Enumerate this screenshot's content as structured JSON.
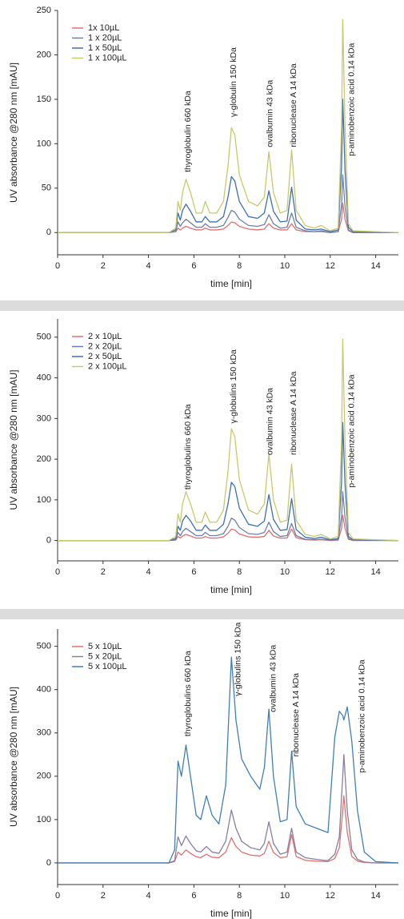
{
  "chart_data": [
    {
      "type": "line",
      "x_label": "time [min]",
      "y_label": "UV absorbance @280 nm [mAU]",
      "legend": "upper left",
      "xlim": [
        0,
        15
      ],
      "ylim": [
        -25,
        250
      ],
      "xticks": [
        0,
        2,
        4,
        6,
        8,
        10,
        12,
        14
      ],
      "yticks": [
        0,
        50,
        100,
        150,
        200,
        250
      ],
      "x": [
        0,
        4.9,
        5.2,
        5.3,
        5.4,
        5.5,
        5.65,
        5.85,
        6.1,
        6.35,
        6.5,
        6.7,
        7.0,
        7.3,
        7.5,
        7.65,
        7.8,
        8.0,
        8.4,
        8.8,
        9.1,
        9.3,
        9.5,
        9.8,
        10.1,
        10.3,
        10.5,
        10.9,
        11.3,
        11.6,
        12.0,
        12.35,
        12.5,
        12.55,
        12.65,
        12.8,
        13.0,
        15
      ],
      "series": [
        {
          "name": "1x 10µL",
          "color": "#e07070",
          "values": [
            0,
            0,
            1,
            5,
            3,
            5,
            7,
            5,
            3,
            3,
            5,
            3,
            3,
            4,
            8,
            12,
            11,
            7,
            4,
            3,
            4,
            10,
            5,
            3,
            3,
            10,
            3,
            1,
            1,
            1,
            0,
            1,
            15,
            33,
            15,
            2,
            0,
            0
          ]
        },
        {
          "name": "1 x 20µL",
          "color": "#6f7fa6",
          "values": [
            0,
            0,
            1,
            12,
            7,
            11,
            15,
            11,
            6,
            6,
            10,
            6,
            6,
            8,
            17,
            25,
            23,
            15,
            8,
            7,
            9,
            20,
            10,
            5,
            6,
            22,
            6,
            2,
            1,
            2,
            0,
            1,
            32,
            65,
            30,
            3,
            0,
            0
          ]
        },
        {
          "name": "1 x 50µL",
          "color": "#3d6fb3",
          "values": [
            0,
            0,
            3,
            22,
            14,
            25,
            32,
            24,
            12,
            12,
            18,
            12,
            12,
            18,
            40,
            63,
            58,
            35,
            18,
            16,
            22,
            47,
            24,
            12,
            13,
            51,
            14,
            4,
            3,
            4,
            1,
            3,
            75,
            150,
            70,
            6,
            1,
            0
          ]
        },
        {
          "name": "1 x 100µL",
          "color": "#c6ca6a",
          "values": [
            0,
            0,
            5,
            35,
            25,
            45,
            60,
            45,
            22,
            22,
            35,
            22,
            22,
            35,
            75,
            118,
            110,
            65,
            35,
            30,
            40,
            91,
            45,
            22,
            25,
            93,
            25,
            8,
            5,
            8,
            2,
            5,
            120,
            240,
            120,
            10,
            2,
            0
          ]
        }
      ],
      "annotations": [
        {
          "text": "thyroglobulin 660 kDa",
          "x": 5.75,
          "y": 68
        },
        {
          "text": "γ-globulin 150 kDa",
          "x": 7.75,
          "y": 130
        },
        {
          "text": "ovalbumin 43 kDa",
          "x": 9.35,
          "y": 96
        },
        {
          "text": "ribonuclease A 14 kDa",
          "x": 10.4,
          "y": 96
        },
        {
          "text": "p-aminobenzoic acid 0.14 kDa",
          "x": 12.95,
          "y": 86
        }
      ]
    },
    {
      "type": "line",
      "x_label": "time [min]",
      "y_label": "UV absorbance @280 nm [mAU]",
      "legend": "upper left",
      "xlim": [
        0,
        15
      ],
      "ylim": [
        -50,
        545
      ],
      "xticks": [
        0,
        2,
        4,
        6,
        8,
        10,
        12,
        14
      ],
      "yticks": [
        0,
        100,
        200,
        300,
        400,
        500
      ],
      "x": [
        0,
        4.9,
        5.2,
        5.3,
        5.4,
        5.5,
        5.65,
        5.85,
        6.1,
        6.35,
        6.5,
        6.7,
        7.0,
        7.3,
        7.5,
        7.65,
        7.8,
        8.0,
        8.4,
        8.8,
        9.1,
        9.3,
        9.5,
        9.8,
        10.1,
        10.3,
        10.5,
        10.9,
        11.3,
        11.6,
        12.0,
        12.35,
        12.5,
        12.55,
        12.65,
        12.8,
        13.0,
        15
      ],
      "series": [
        {
          "name": "2 x 10µL",
          "color": "#e07070",
          "values": [
            0,
            0,
            1,
            10,
            6,
            11,
            15,
            11,
            6,
            6,
            10,
            6,
            6,
            9,
            18,
            28,
            26,
            16,
            9,
            8,
            10,
            25,
            11,
            6,
            6,
            28,
            7,
            2,
            1,
            2,
            0,
            1,
            30,
            62,
            30,
            3,
            0,
            0
          ]
        },
        {
          "name": "2 x 20µL",
          "color": "#6f7fa6",
          "values": [
            0,
            0,
            2,
            20,
            12,
            22,
            30,
            22,
            12,
            12,
            20,
            12,
            12,
            17,
            35,
            55,
            50,
            32,
            17,
            15,
            20,
            45,
            22,
            10,
            12,
            42,
            12,
            3,
            2,
            3,
            1,
            2,
            60,
            120,
            58,
            5,
            1,
            0
          ]
        },
        {
          "name": "2 x 50µL",
          "color": "#3d6fb3",
          "values": [
            0,
            0,
            5,
            35,
            25,
            48,
            62,
            48,
            25,
            25,
            38,
            25,
            25,
            40,
            90,
            143,
            133,
            80,
            40,
            35,
            48,
            113,
            52,
            25,
            27,
            103,
            27,
            8,
            5,
            8,
            2,
            5,
            145,
            290,
            140,
            10,
            2,
            0
          ]
        },
        {
          "name": "2 x 100µL",
          "color": "#c6ca6a",
          "values": [
            0,
            0,
            10,
            65,
            45,
            90,
            120,
            90,
            45,
            45,
            70,
            45,
            45,
            75,
            170,
            275,
            255,
            150,
            75,
            65,
            90,
            213,
            100,
            45,
            50,
            188,
            50,
            15,
            10,
            15,
            4,
            10,
            250,
            495,
            240,
            20,
            4,
            0
          ]
        }
      ],
      "annotations": [
        {
          "text": "thyroglobulins 660 kDa",
          "x": 5.75,
          "y": 125
        },
        {
          "text": "γ-globulins 150 kDa",
          "x": 7.75,
          "y": 288
        },
        {
          "text": "ovalbumin 43 kDa",
          "x": 9.35,
          "y": 210
        },
        {
          "text": "ribonuclease A 14 kDa",
          "x": 10.4,
          "y": 210
        },
        {
          "text": "p-aminobenzoic acid 0.14 kDa",
          "x": 12.95,
          "y": 130
        }
      ]
    },
    {
      "type": "line",
      "x_label": "time [min]",
      "y_label": "UV absorbance @280 nm [mAU]",
      "legend": "upper left",
      "xlim": [
        0,
        15
      ],
      "ylim": [
        -50,
        540
      ],
      "xticks": [
        0,
        2,
        4,
        6,
        8,
        10,
        12,
        14
      ],
      "yticks": [
        0,
        100,
        200,
        300,
        400,
        500
      ],
      "x": [
        0,
        4.9,
        5.15,
        5.3,
        5.45,
        5.65,
        5.85,
        6.1,
        6.3,
        6.55,
        6.8,
        7.1,
        7.4,
        7.65,
        7.85,
        8.1,
        8.5,
        8.9,
        9.1,
        9.3,
        9.5,
        9.8,
        10.1,
        10.3,
        10.5,
        10.9,
        11.4,
        11.9,
        12.2,
        12.4,
        12.55,
        12.6,
        12.75,
        12.95,
        13.2,
        13.5,
        14,
        15
      ],
      "series": [
        {
          "name": "5 x 10µL",
          "color": "#e07070",
          "values": [
            0,
            0,
            3,
            25,
            18,
            30,
            22,
            14,
            12,
            20,
            13,
            12,
            25,
            58,
            38,
            25,
            18,
            16,
            22,
            50,
            24,
            12,
            14,
            65,
            15,
            6,
            4,
            3,
            10,
            35,
            120,
            155,
            70,
            15,
            4,
            1,
            0,
            0
          ]
        },
        {
          "name": "5 x 20µL",
          "color": "#8a7f9e",
          "values": [
            0,
            0,
            5,
            60,
            40,
            62,
            45,
            28,
            25,
            38,
            25,
            22,
            50,
            122,
            80,
            50,
            35,
            30,
            45,
            95,
            45,
            20,
            25,
            80,
            25,
            12,
            8,
            5,
            20,
            60,
            200,
            250,
            120,
            30,
            8,
            2,
            0,
            0
          ]
        },
        {
          "name": "5 x 100µL",
          "color": "#3f7fb8",
          "values": [
            0,
            0,
            30,
            235,
            200,
            272,
            200,
            110,
            100,
            155,
            110,
            90,
            180,
            475,
            330,
            240,
            200,
            170,
            220,
            355,
            200,
            95,
            100,
            258,
            130,
            90,
            80,
            70,
            290,
            350,
            340,
            330,
            360,
            280,
            120,
            25,
            3,
            0
          ]
        }
      ],
      "annotations": [
        {
          "text": "thyroglobulins 660 kDa",
          "x": 5.75,
          "y": 292
        },
        {
          "text": "γ-globulins 150 kDa",
          "x": 7.95,
          "y": 385
        },
        {
          "text": "ovalbumin 43 kDa",
          "x": 9.5,
          "y": 348
        },
        {
          "text": "ribonuclease A 14 kDa",
          "x": 10.5,
          "y": 245
        },
        {
          "text": "p-aminobenzoic acid 0.14 kDa",
          "x": 13.4,
          "y": 208
        }
      ]
    }
  ]
}
